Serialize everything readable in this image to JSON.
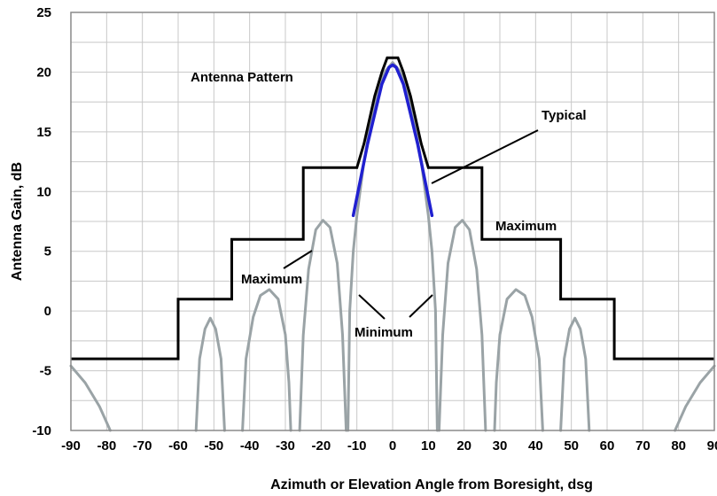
{
  "chart_data": {
    "type": "line",
    "title": "",
    "xlabel": "Azimuth or Elevation Angle from Boresight, dsg",
    "ylabel": "Antenna Gain, dB",
    "xlim": [
      -90,
      90
    ],
    "ylim": [
      -10,
      25
    ],
    "grid": true,
    "xticks": [
      -90,
      -80,
      -70,
      -60,
      -50,
      -40,
      -30,
      -20,
      -10,
      0,
      10,
      20,
      30,
      40,
      50,
      60,
      70,
      80,
      90
    ],
    "yticks": [
      -10,
      -5,
      0,
      5,
      10,
      15,
      20,
      25
    ],
    "colors": {
      "maximum": "#000000",
      "pattern": "#9aa3a6",
      "typical": "#2020d0"
    },
    "series": [
      {
        "name": "Maximum",
        "points": [
          [
            -90,
            -4
          ],
          [
            -60,
            -4
          ],
          [
            -60,
            1
          ],
          [
            -45,
            1
          ],
          [
            -45,
            6
          ],
          [
            -25,
            6
          ],
          [
            -25,
            12
          ],
          [
            -10,
            12
          ],
          [
            -8,
            14
          ],
          [
            -5,
            18
          ],
          [
            -3,
            20
          ],
          [
            -1.5,
            21.2
          ],
          [
            1.5,
            21.2
          ],
          [
            3,
            20
          ],
          [
            5,
            18
          ],
          [
            8,
            14
          ],
          [
            10,
            12
          ],
          [
            25,
            12
          ],
          [
            25,
            6
          ],
          [
            47,
            6
          ],
          [
            47,
            1
          ],
          [
            62,
            1
          ],
          [
            62,
            -4
          ],
          [
            90,
            -4
          ]
        ]
      },
      {
        "name": "Typical",
        "points": [
          [
            -11,
            8
          ],
          [
            -9,
            11
          ],
          [
            -7,
            14
          ],
          [
            -5,
            16.5
          ],
          [
            -3,
            19
          ],
          [
            -1,
            20.4
          ],
          [
            0,
            20.6
          ],
          [
            1,
            20.4
          ],
          [
            3,
            19
          ],
          [
            5,
            16.5
          ],
          [
            7,
            14
          ],
          [
            9,
            11
          ],
          [
            11,
            8
          ]
        ]
      },
      {
        "name": "Antenna Pattern",
        "segments": [
          [
            [
              -90,
              -4.6
            ],
            [
              -86,
              -6
            ],
            [
              -82,
              -8
            ],
            [
              -79,
              -10
            ]
          ],
          [
            [
              -55,
              -10
            ],
            [
              -54,
              -4
            ],
            [
              -52.5,
              -1.5
            ],
            [
              -51,
              -0.6
            ],
            [
              -49.5,
              -1.5
            ],
            [
              -48,
              -4
            ],
            [
              -47,
              -10
            ]
          ],
          [
            [
              -42,
              -10
            ],
            [
              -41,
              -4
            ],
            [
              -39,
              -0.5
            ],
            [
              -37,
              1.3
            ],
            [
              -34.5,
              1.8
            ],
            [
              -32,
              1
            ],
            [
              -30,
              -2
            ],
            [
              -29,
              -6
            ],
            [
              -28.5,
              -10
            ]
          ],
          [
            [
              -26,
              -10
            ],
            [
              -25,
              -2
            ],
            [
              -23.5,
              3.5
            ],
            [
              -21.5,
              6.8
            ],
            [
              -19.5,
              7.6
            ],
            [
              -17.5,
              7
            ],
            [
              -15.5,
              4
            ],
            [
              -14,
              -2
            ],
            [
              -13,
              -10
            ]
          ],
          [
            [
              -12.5,
              -10
            ],
            [
              -12,
              0
            ],
            [
              -11,
              5
            ],
            [
              -10,
              8
            ],
            [
              -8,
              12.5
            ],
            [
              -6,
              16
            ],
            [
              -4,
              18.7
            ],
            [
              -2,
              20.1
            ],
            [
              0,
              20.8
            ],
            [
              2,
              20.1
            ],
            [
              4,
              18.7
            ],
            [
              6,
              16
            ],
            [
              8,
              12.5
            ],
            [
              10,
              8
            ],
            [
              11,
              5
            ],
            [
              12,
              0
            ],
            [
              12.5,
              -10
            ]
          ],
          [
            [
              13,
              -10
            ],
            [
              14,
              -2
            ],
            [
              15.5,
              4
            ],
            [
              17.5,
              7
            ],
            [
              19.5,
              7.6
            ],
            [
              21.5,
              6.8
            ],
            [
              23.5,
              3.5
            ],
            [
              25,
              -2
            ],
            [
              26,
              -10
            ]
          ],
          [
            [
              28.5,
              -10
            ],
            [
              29,
              -6
            ],
            [
              30,
              -2
            ],
            [
              32,
              1
            ],
            [
              34.5,
              1.8
            ],
            [
              37,
              1.3
            ],
            [
              39,
              -0.5
            ],
            [
              41,
              -4
            ],
            [
              42,
              -10
            ]
          ],
          [
            [
              47,
              -10
            ],
            [
              48,
              -4
            ],
            [
              49.5,
              -1.5
            ],
            [
              51,
              -0.6
            ],
            [
              52.5,
              -1.5
            ],
            [
              54,
              -4
            ],
            [
              55,
              -10
            ]
          ],
          [
            [
              79,
              -10
            ],
            [
              82,
              -8
            ],
            [
              86,
              -6
            ],
            [
              90,
              -4.6
            ]
          ]
        ]
      }
    ],
    "annotations": [
      {
        "text": "Antenna Pattern"
      },
      {
        "text": "Typical"
      },
      {
        "text": "Maximum",
        "side": "right"
      },
      {
        "text": "Maximum",
        "side": "left"
      },
      {
        "text": "Minimum"
      }
    ]
  }
}
